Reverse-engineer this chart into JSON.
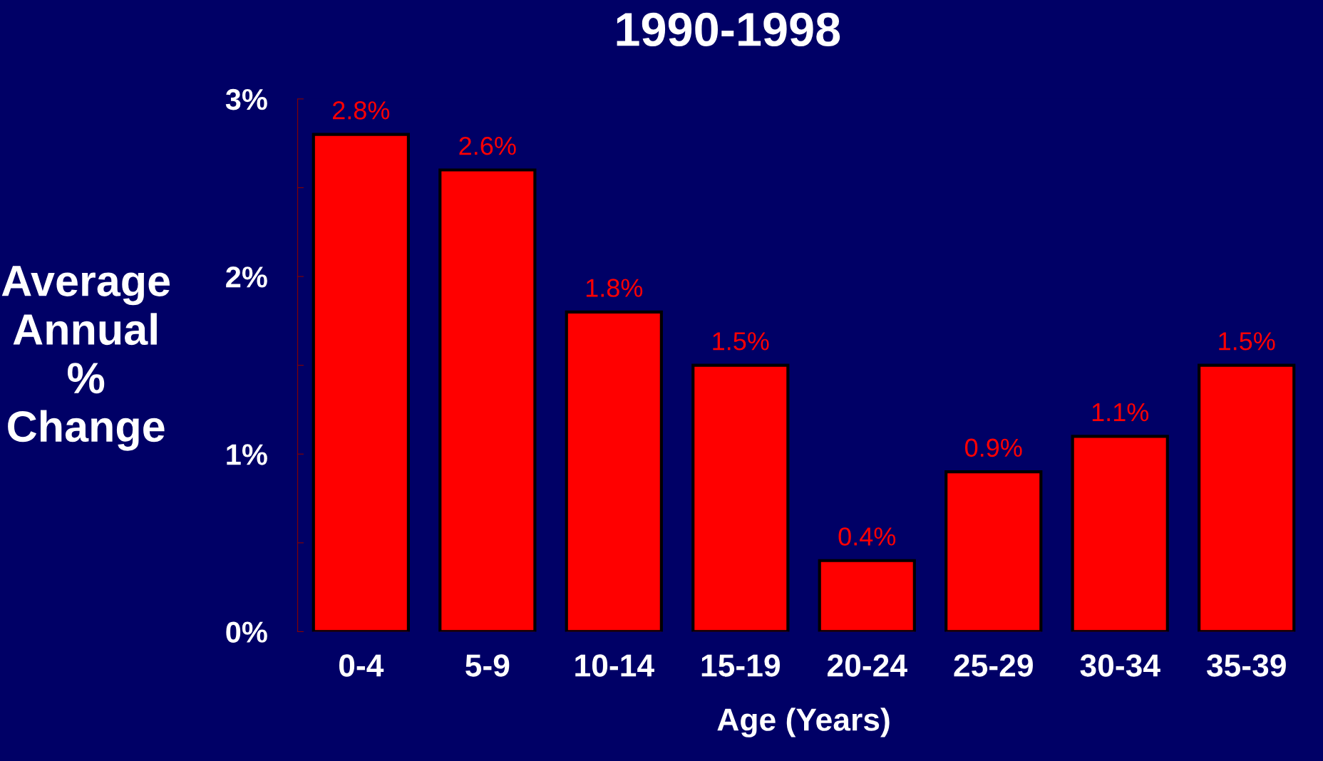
{
  "chart_data": {
    "type": "bar",
    "title": "1990-1998",
    "xlabel": "Age (Years)",
    "ylabel": "Average\nAnnual\n%\nChange",
    "categories": [
      "0-4",
      "5-9",
      "10-14",
      "15-19",
      "20-24",
      "25-29",
      "30-34",
      "35-39"
    ],
    "values": [
      2.8,
      2.6,
      1.8,
      1.5,
      0.4,
      0.9,
      1.1,
      1.5
    ],
    "value_labels": [
      "2.8%",
      "2.6%",
      "1.8%",
      "1.5%",
      "0.4%",
      "0.9%",
      "1.1%",
      "1.5%"
    ],
    "color": "#ff0000",
    "ylim": [
      0,
      3
    ],
    "yticks": [
      {
        "value": 0,
        "label": "0%"
      },
      {
        "value": 0.5,
        "label": null
      },
      {
        "value": 1,
        "label": "1%"
      },
      {
        "value": 1.5,
        "label": null
      },
      {
        "value": 2,
        "label": "2%"
      },
      {
        "value": 2.5,
        "label": null
      },
      {
        "value": 3,
        "label": "3%"
      }
    ],
    "grid": false,
    "legend": false
  }
}
